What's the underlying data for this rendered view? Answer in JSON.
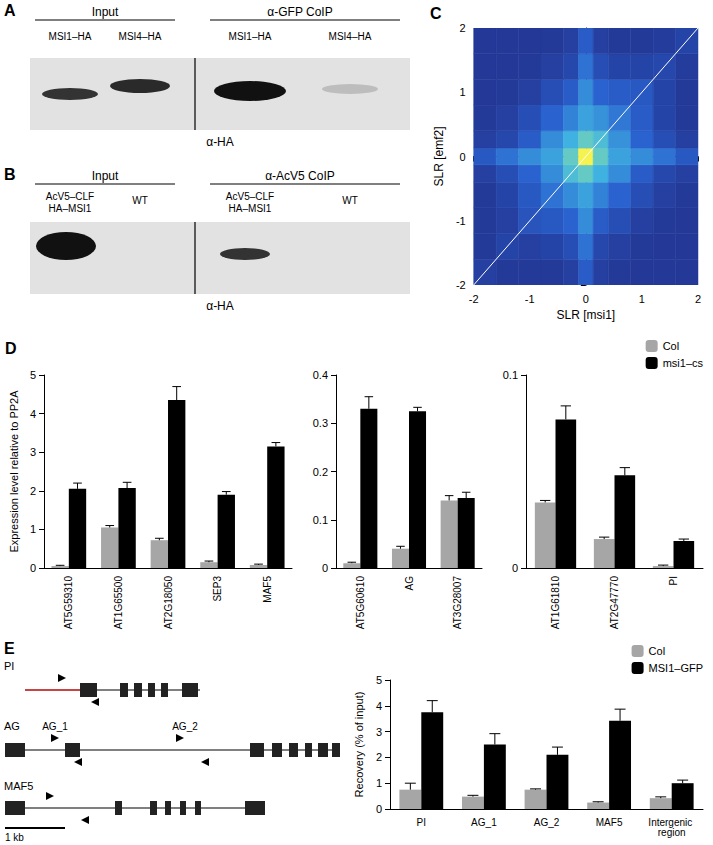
{
  "panels": {
    "A": {
      "label": "A",
      "headers": [
        "Input",
        "α-GFP CoIP"
      ],
      "lanes": [
        [
          "MSI1–HA"
        ],
        [
          "MSI4–HA"
        ],
        [
          "MSI1–HA"
        ],
        [
          "MSI4–HA"
        ]
      ],
      "antibody": "α-HA"
    },
    "B": {
      "label": "B",
      "headers": [
        "Input",
        "α-AcV5 CoIP"
      ],
      "lanes": [
        [
          "AcV5–CLF",
          "HA–MSI1"
        ],
        [
          "WT"
        ],
        [
          "AcV5–CLF",
          "HA–MSI1"
        ],
        [
          "WT"
        ]
      ],
      "antibody": "α-HA"
    },
    "E": {
      "label": "E",
      "genes": [
        {
          "name": "PI"
        },
        {
          "name": "AG",
          "primer_labels": [
            "AG_1",
            "AG_2"
          ]
        },
        {
          "name": "MAF5"
        }
      ],
      "scale_bar": "1 kb"
    }
  },
  "chart_data": [
    {
      "type": "heatmap",
      "title": "C",
      "xlabel": "SLR [msi1]",
      "ylabel": "SLR [emf2]",
      "xlim": [
        -2,
        2
      ],
      "ylim": [
        -2,
        2
      ],
      "xticks": [
        -2,
        -1,
        0,
        1,
        2
      ],
      "yticks": [
        -2,
        -1,
        0,
        1,
        2
      ],
      "x_edges": [
        -2,
        -1.6,
        -1.2,
        -0.8,
        -0.4,
        -0.13,
        0.13,
        0.4,
        0.8,
        1.2,
        1.6,
        2
      ],
      "y_edges": [
        -2,
        -1.6,
        -1.2,
        -0.8,
        -0.4,
        -0.13,
        0.13,
        0.4,
        0.8,
        1.2,
        1.6,
        2
      ],
      "cells": [
        [
          0.08,
          0.05,
          0.05,
          0.05,
          0.08,
          0.22,
          0.08,
          0.05,
          0.04,
          0.04,
          0.04
        ],
        [
          0.05,
          0.1,
          0.08,
          0.1,
          0.15,
          0.3,
          0.12,
          0.08,
          0.05,
          0.04,
          0.04
        ],
        [
          0.05,
          0.08,
          0.18,
          0.2,
          0.25,
          0.38,
          0.22,
          0.15,
          0.08,
          0.05,
          0.04
        ],
        [
          0.05,
          0.1,
          0.2,
          0.3,
          0.38,
          0.45,
          0.35,
          0.25,
          0.15,
          0.08,
          0.05
        ],
        [
          0.08,
          0.15,
          0.25,
          0.38,
          0.55,
          0.62,
          0.5,
          0.38,
          0.22,
          0.12,
          0.08
        ],
        [
          0.2,
          0.3,
          0.38,
          0.45,
          0.62,
          1.0,
          0.62,
          0.45,
          0.38,
          0.3,
          0.2
        ],
        [
          0.08,
          0.12,
          0.22,
          0.38,
          0.5,
          0.62,
          0.55,
          0.4,
          0.25,
          0.15,
          0.08
        ],
        [
          0.05,
          0.08,
          0.15,
          0.25,
          0.35,
          0.45,
          0.4,
          0.32,
          0.22,
          0.1,
          0.05
        ],
        [
          0.04,
          0.05,
          0.08,
          0.15,
          0.22,
          0.38,
          0.25,
          0.22,
          0.2,
          0.1,
          0.05
        ],
        [
          0.04,
          0.04,
          0.05,
          0.08,
          0.12,
          0.3,
          0.15,
          0.1,
          0.1,
          0.12,
          0.06
        ],
        [
          0.04,
          0.04,
          0.04,
          0.05,
          0.08,
          0.22,
          0.08,
          0.05,
          0.05,
          0.06,
          0.1
        ]
      ],
      "color_range": [
        0,
        1
      ],
      "colors": [
        "#22308c",
        "#2a62cf",
        "#3fb2e2",
        "#8fe3a2",
        "#f6f24e"
      ],
      "reference_line": {
        "x": [
          -2,
          2
        ],
        "y": [
          -2,
          2
        ],
        "color": "#ffffff"
      },
      "grid": false
    },
    {
      "type": "bar",
      "title": "D",
      "ylabel": "Expression level relative to PP2A",
      "categories": [
        "AT5G59310",
        "AT1G65500",
        "AT2G18050",
        "SEP3",
        "MAF5"
      ],
      "series": [
        {
          "name": "Col",
          "color": "#a6a6a6",
          "values": [
            0.05,
            1.05,
            0.72,
            0.15,
            0.08
          ],
          "errors": [
            0.02,
            0.05,
            0.05,
            0.03,
            0.02
          ]
        },
        {
          "name": "msi1–cs",
          "color": "#000000",
          "values": [
            2.05,
            2.07,
            4.35,
            1.9,
            3.15
          ],
          "errors": [
            0.15,
            0.15,
            0.35,
            0.08,
            0.1
          ]
        }
      ],
      "ylim": [
        0,
        5
      ],
      "yticks": [
        0,
        1,
        2,
        3,
        4,
        5
      ],
      "grid": false
    },
    {
      "type": "bar",
      "categories": [
        "AT5G60610",
        "AG",
        "AT3G28007"
      ],
      "series": [
        {
          "name": "Col",
          "color": "#a6a6a6",
          "values": [
            0.01,
            0.04,
            0.14
          ],
          "errors": [
            0.002,
            0.005,
            0.01
          ]
        },
        {
          "name": "msi1–cs",
          "color": "#000000",
          "values": [
            0.33,
            0.325,
            0.145
          ],
          "errors": [
            0.025,
            0.008,
            0.012
          ]
        }
      ],
      "ylim": [
        0,
        0.4
      ],
      "yticks": [
        0,
        0.1,
        0.2,
        0.3,
        0.4
      ],
      "grid": false
    },
    {
      "type": "bar",
      "categories": [
        "AT1G61810",
        "AT2G47770",
        "PI"
      ],
      "series": [
        {
          "name": "Col",
          "color": "#a6a6a6",
          "values": [
            0.034,
            0.015,
            0.001
          ],
          "errors": [
            0.001,
            0.001,
            0.0005
          ]
        },
        {
          "name": "msi1–cs",
          "color": "#000000",
          "values": [
            0.077,
            0.048,
            0.014
          ],
          "errors": [
            0.007,
            0.004,
            0.001
          ]
        }
      ],
      "ylim": [
        0,
        0.1
      ],
      "yticks": [
        0,
        0.1
      ],
      "legend": "top-right",
      "grid": false
    },
    {
      "type": "bar",
      "ylabel": "Recovery (% of input)",
      "categories": [
        "PI",
        "AG_1",
        "AG_2",
        "MAF5",
        "Intergenic region"
      ],
      "series": [
        {
          "name": "Col",
          "color": "#a6a6a6",
          "values": [
            0.75,
            0.48,
            0.75,
            0.25,
            0.42
          ],
          "errors": [
            0.25,
            0.05,
            0.03,
            0.03,
            0.05
          ]
        },
        {
          "name": "MSI1–GFP",
          "color": "#000000",
          "values": [
            3.75,
            2.5,
            2.1,
            3.42,
            1.0
          ],
          "errors": [
            0.45,
            0.42,
            0.3,
            0.45,
            0.12
          ]
        }
      ],
      "ylim": [
        0,
        5
      ],
      "yticks": [
        0,
        1,
        2,
        3,
        4,
        5
      ],
      "legend": "top-right",
      "grid": false
    }
  ]
}
